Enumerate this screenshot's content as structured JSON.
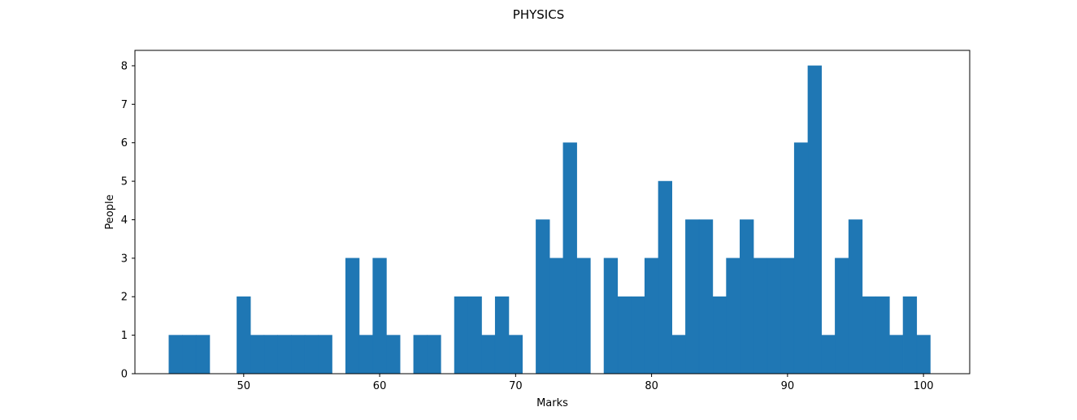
{
  "chart_data": {
    "type": "bar",
    "title": "PHYSICS",
    "xlabel": "Marks",
    "ylabel": "People",
    "xlim": [
      42.0,
      103.4
    ],
    "ylim": [
      0,
      8.4
    ],
    "x_ticks": [
      50,
      60,
      70,
      80,
      90,
      100
    ],
    "y_ticks": [
      0,
      1,
      2,
      3,
      4,
      5,
      6,
      7,
      8
    ],
    "bin_width": 1,
    "bar_color": "#1f77b4",
    "grid": false,
    "x": [
      45,
      46,
      47,
      50,
      51,
      52,
      53,
      54,
      55,
      56,
      58,
      59,
      60,
      61,
      63,
      64,
      66,
      67,
      68,
      69,
      70,
      72,
      73,
      74,
      75,
      77,
      78,
      79,
      80,
      81,
      82,
      83,
      84,
      85,
      86,
      87,
      88,
      89,
      90,
      91,
      92,
      93,
      94,
      95,
      96,
      97,
      98,
      99,
      100
    ],
    "values": [
      1,
      1,
      1,
      2,
      1,
      1,
      1,
      1,
      1,
      1,
      3,
      1,
      3,
      1,
      1,
      1,
      2,
      2,
      1,
      2,
      1,
      4,
      3,
      6,
      3,
      3,
      2,
      2,
      3,
      5,
      1,
      4,
      4,
      2,
      3,
      4,
      3,
      3,
      3,
      6,
      8,
      1,
      3,
      4,
      2,
      2,
      1,
      2,
      1
    ]
  }
}
